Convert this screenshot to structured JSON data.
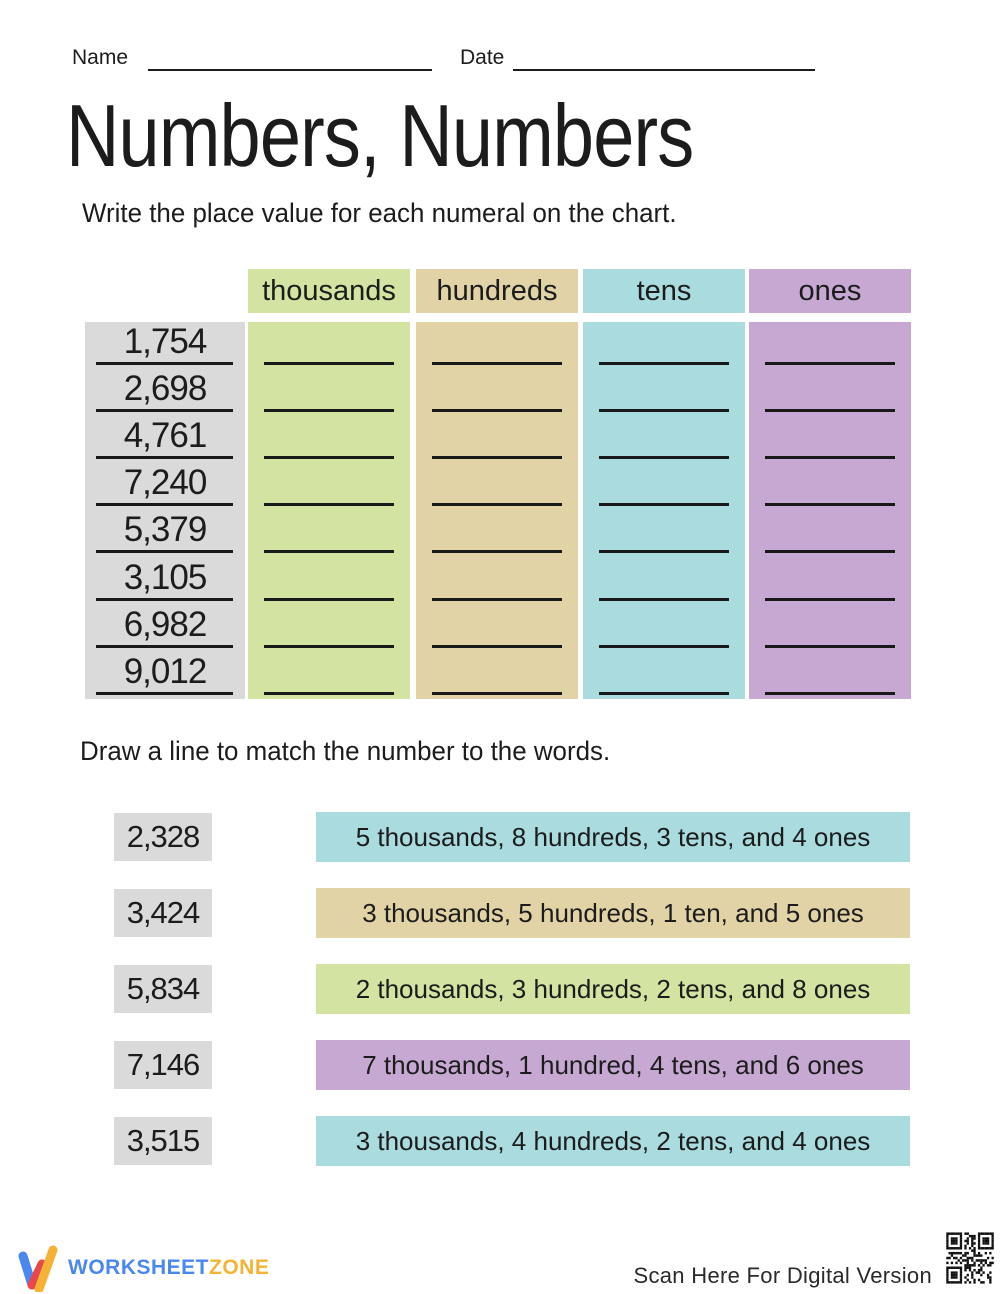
{
  "page": {
    "name_label": "Name",
    "date_label": "Date",
    "title": "Numbers, Numbers",
    "instruction_chart": "Write the place value for each numeral on the chart.",
    "instruction_match": "Draw a line to match the number to the words."
  },
  "place_value_table": {
    "columns": [
      {
        "label": "thousands",
        "color": "#d2e3a2"
      },
      {
        "label": "hundreds",
        "color": "#e2d3a7"
      },
      {
        "label": "tens",
        "color": "#a9dbdf"
      },
      {
        "label": "ones",
        "color": "#c6a8d2"
      }
    ],
    "row_numbers": [
      "1,754",
      "2,698",
      "4,761",
      "7,240",
      "5,379",
      "3,105",
      "6,982",
      "9,012"
    ],
    "number_column_color": "#dadada"
  },
  "matching": {
    "number_box_color": "#dadada",
    "pairs": [
      {
        "number": "2,328",
        "words": "5 thousands, 8 hundreds, 3 tens, and 4 ones",
        "color": "#a9dbdf"
      },
      {
        "number": "3,424",
        "words": "3 thousands, 5 hundreds, 1 ten, and 5 ones",
        "color": "#e2d3a7"
      },
      {
        "number": "5,834",
        "words": "2 thousands, 3 hundreds, 2 tens, and 8 ones",
        "color": "#d2e3a2"
      },
      {
        "number": "7,146",
        "words": "7 thousands, 1 hundred, 4 tens, and 6 ones",
        "color": "#c6a8d2"
      },
      {
        "number": "3,515",
        "words": "3 thousands, 4 hundreds, 2 tens, and 4 ones",
        "color": "#a9dbdf"
      }
    ]
  },
  "footer": {
    "brand_part1": "WORKSHEET",
    "brand_part2": "ZONE",
    "brand_blue": "#4a87ee",
    "brand_yellow": "#f5b335",
    "brand_red": "#e8484d",
    "scan_text": "Scan Here For Digital Version",
    "qr_icon": "qr-code"
  }
}
